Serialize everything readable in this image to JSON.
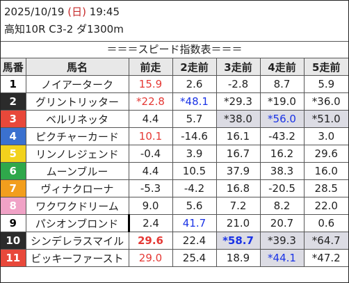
{
  "header": {
    "date": "2025/10/19",
    "dow_open": "(",
    "dow": "日",
    "dow_close": ")",
    "time": "19:45",
    "race": "高知10R C3-2 ダ1300m"
  },
  "subtitle": "＝＝＝スピード指数表＝＝＝",
  "columns": [
    "馬番",
    "馬名",
    "前走",
    "2走前",
    "3走前",
    "4走前",
    "5走前"
  ],
  "number_colors": [
    {
      "bg": "#ffffff",
      "fg": "#000000"
    },
    {
      "bg": "#2b2b2b",
      "fg": "#ffffff"
    },
    {
      "bg": "#e8483a",
      "fg": "#ffffff"
    },
    {
      "bg": "#3b71cf",
      "fg": "#ffffff"
    },
    {
      "bg": "#f2d21d",
      "fg": "#ffffff"
    },
    {
      "bg": "#2fa84b",
      "fg": "#ffffff"
    },
    {
      "bg": "#f29e1d",
      "fg": "#ffffff"
    },
    {
      "bg": "#f0a2c6",
      "fg": "#ffffff"
    }
  ],
  "rows": [
    {
      "no": "1",
      "name": "ノイアーターク",
      "v": [
        "15.9",
        "2.6",
        "-2.8",
        "8.7",
        "5.9"
      ],
      "s": [
        "red",
        "",
        "",
        "",
        ""
      ]
    },
    {
      "no": "2",
      "name": "グリントリッター",
      "v": [
        "*22.8",
        "*48.1",
        "*29.3",
        "*19.0",
        "*36.0"
      ],
      "s": [
        "red",
        "blue",
        "",
        "",
        ""
      ]
    },
    {
      "no": "3",
      "name": "ベルリネッタ",
      "v": [
        "4.4",
        "5.7",
        "*38.0",
        "*56.0",
        "*51.0"
      ],
      "s": [
        "",
        "",
        "shade",
        "blue shade",
        "shade"
      ]
    },
    {
      "no": "4",
      "name": "ピクチャーカード",
      "v": [
        "10.1",
        "-14.6",
        "16.1",
        "-43.2",
        "3.0"
      ],
      "s": [
        "red",
        "",
        "",
        "",
        ""
      ]
    },
    {
      "no": "5",
      "name": "リンノレジェンド",
      "v": [
        "-0.4",
        "3.9",
        "16.7",
        "16.2",
        "29.6"
      ],
      "s": [
        "",
        "",
        "",
        "",
        ""
      ]
    },
    {
      "no": "6",
      "name": "ムーンブルー",
      "v": [
        "4.4",
        "10.5",
        "37.9",
        "38.3",
        "16.0"
      ],
      "s": [
        "",
        "",
        "",
        "",
        ""
      ]
    },
    {
      "no": "7",
      "name": "ヴィナクローナ",
      "v": [
        "-5.3",
        "-4.2",
        "16.8",
        "-20.5",
        "28.5"
      ],
      "s": [
        "",
        "",
        "",
        "",
        ""
      ]
    },
    {
      "no": "8",
      "name": "ワクワクドリーム",
      "v": [
        "9.0",
        "5.6",
        "7.2",
        "8.2",
        "22.0"
      ],
      "s": [
        "",
        "",
        "",
        "",
        ""
      ]
    },
    {
      "no": "9",
      "name": "パシオンブロンド",
      "v": [
        "2.4",
        "41.7",
        "21.0",
        "20.7",
        "0.6"
      ],
      "s": [
        "",
        "blue",
        "",
        "",
        ""
      ],
      "bar": true
    },
    {
      "no": "10",
      "name": "シンデレラスマイル",
      "v": [
        "29.6",
        "22.4",
        "*58.7",
        "*39.3",
        "*64.7"
      ],
      "s": [
        "red bold",
        "",
        "blue bold shade",
        "shade",
        "shade"
      ]
    },
    {
      "no": "11",
      "name": "ビッキーファースト",
      "v": [
        "29.0",
        "25.4",
        "18.9",
        "*44.1",
        "*47.2"
      ],
      "s": [
        "red",
        "",
        "",
        "blue shade",
        ""
      ]
    }
  ]
}
